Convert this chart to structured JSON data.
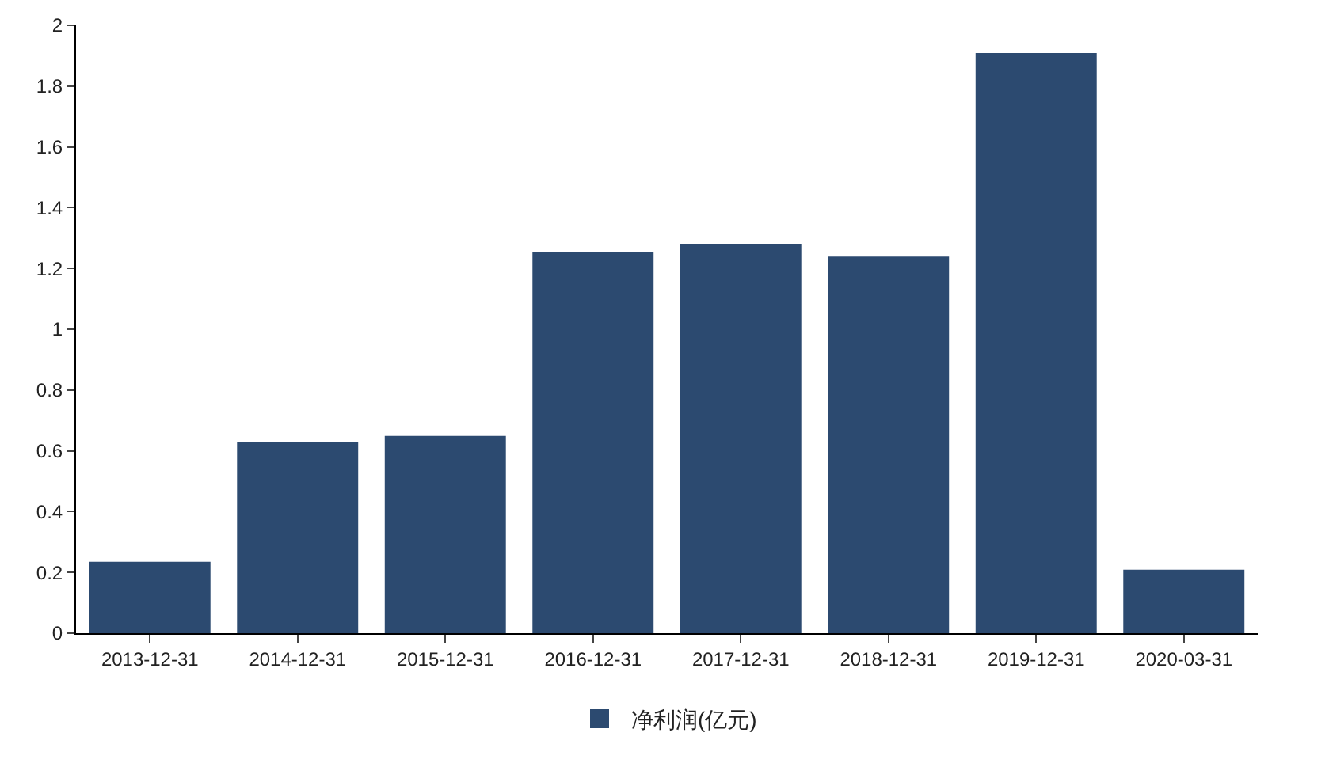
{
  "chart_data": {
    "type": "bar",
    "categories": [
      "2013-12-31",
      "2014-12-31",
      "2015-12-31",
      "2016-12-31",
      "2017-12-31",
      "2018-12-31",
      "2019-12-31",
      "2020-03-31"
    ],
    "series": [
      {
        "name": "净利润(亿元)",
        "color": "#2c4a70",
        "values": [
          0.235,
          0.628,
          0.649,
          1.255,
          1.281,
          1.239,
          1.909,
          0.209
        ]
      }
    ],
    "ylim": [
      0,
      2
    ],
    "yticks": [
      0,
      0.2,
      0.4,
      0.6,
      0.8,
      1,
      1.2,
      1.4,
      1.6,
      1.8,
      2
    ],
    "grid": false,
    "legend": "bottom"
  }
}
